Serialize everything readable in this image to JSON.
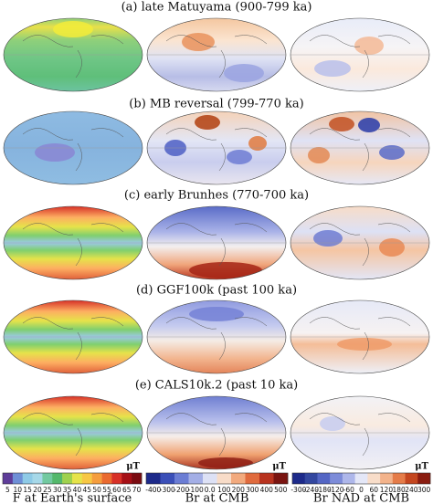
{
  "panels": [
    {
      "title": "(a) late Matuyama (900-799 ka)"
    },
    {
      "title": "(b) MB reversal (799-770 ka)"
    },
    {
      "title": "(c) early Brunhes (770-700 ka)"
    },
    {
      "title": "(d) GGF100k (past 100 ka)"
    },
    {
      "title": "(e) CALS10k.2 (past 10 ka)"
    }
  ],
  "colorbars": [
    {
      "unit": "μT",
      "ticks": [
        "5",
        "10",
        "15",
        "20",
        "25",
        "30",
        "35",
        "40",
        "45",
        "50",
        "55",
        "60",
        "65",
        "70"
      ],
      "caption": "F at Earth's surface"
    },
    {
      "unit": "μT",
      "ticks": [
        "-400",
        "-300",
        "-200",
        "-100",
        "0.0",
        "100",
        "200",
        "300",
        "400",
        "500"
      ],
      "caption": "Br at CMB"
    },
    {
      "unit": "μT",
      "ticks": [
        "-300",
        "-240",
        "-180",
        "-120",
        "-60",
        "0",
        "60",
        "120",
        "180",
        "240",
        "300"
      ],
      "caption": "Br NAD at CMB"
    }
  ]
}
